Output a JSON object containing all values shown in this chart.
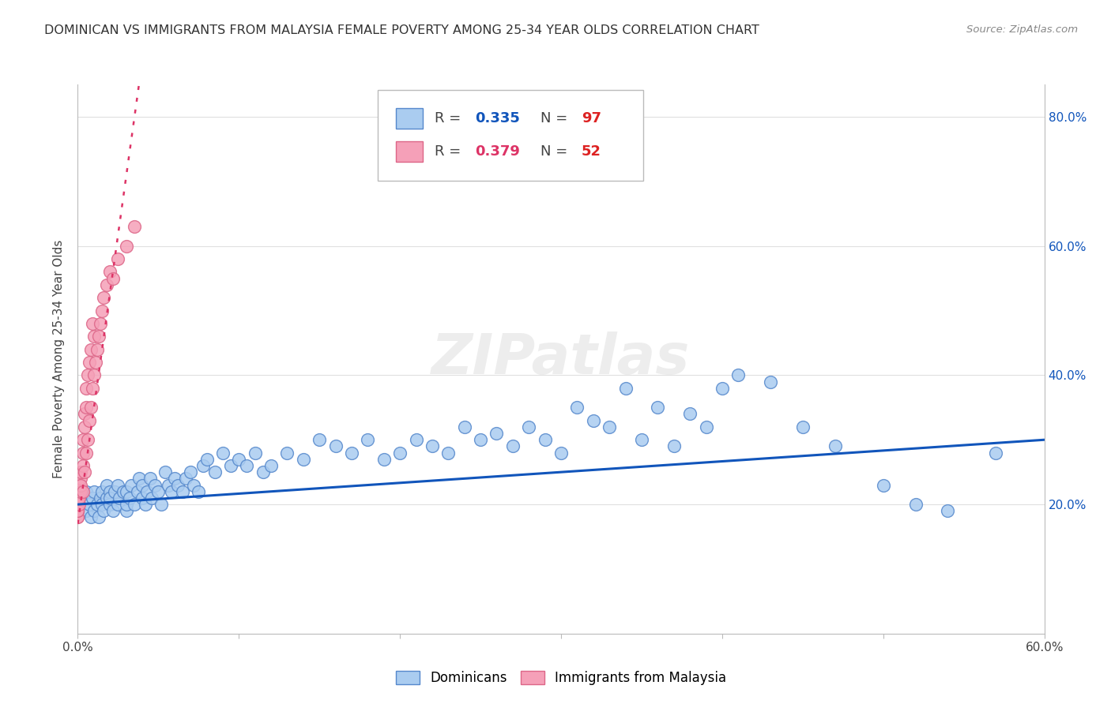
{
  "title": "DOMINICAN VS IMMIGRANTS FROM MALAYSIA FEMALE POVERTY AMONG 25-34 YEAR OLDS CORRELATION CHART",
  "source": "Source: ZipAtlas.com",
  "ylabel": "Female Poverty Among 25-34 Year Olds",
  "xlim": [
    0.0,
    0.6
  ],
  "ylim": [
    0.0,
    0.85
  ],
  "xtick_values": [
    0.0,
    0.1,
    0.2,
    0.3,
    0.4,
    0.5,
    0.6
  ],
  "xtick_labels": [
    "0.0%",
    "",
    "",
    "",
    "",
    "",
    "60.0%"
  ],
  "ytick_values_left": [
    0.0,
    0.2,
    0.4,
    0.6,
    0.8
  ],
  "ytick_labels_left": [
    "",
    "",
    "",
    "",
    ""
  ],
  "ytick_values_right": [
    0.2,
    0.4,
    0.6,
    0.8
  ],
  "ytick_labels_right": [
    "20.0%",
    "40.0%",
    "60.0%",
    "80.0%"
  ],
  "dominican_color": "#aaccf0",
  "dominican_edge_color": "#5588cc",
  "malaysia_color": "#f5a0b8",
  "malaysia_edge_color": "#dd6688",
  "trendline_dominican_color": "#1155bb",
  "trendline_malaysia_color": "#dd3366",
  "R_dominican": 0.335,
  "N_dominican": 97,
  "R_malaysia": 0.379,
  "N_malaysia": 52,
  "background_color": "#ffffff",
  "grid_color": "#e0e0e0",
  "watermark": "ZIPatlas",
  "dominican_x": [
    0.005,
    0.005,
    0.007,
    0.008,
    0.009,
    0.01,
    0.01,
    0.012,
    0.013,
    0.014,
    0.015,
    0.015,
    0.016,
    0.018,
    0.018,
    0.02,
    0.02,
    0.02,
    0.022,
    0.023,
    0.025,
    0.025,
    0.026,
    0.028,
    0.03,
    0.03,
    0.03,
    0.032,
    0.033,
    0.035,
    0.037,
    0.038,
    0.04,
    0.04,
    0.042,
    0.043,
    0.045,
    0.046,
    0.048,
    0.05,
    0.052,
    0.054,
    0.056,
    0.058,
    0.06,
    0.062,
    0.065,
    0.067,
    0.07,
    0.072,
    0.075,
    0.078,
    0.08,
    0.085,
    0.09,
    0.095,
    0.1,
    0.105,
    0.11,
    0.115,
    0.12,
    0.13,
    0.14,
    0.15,
    0.16,
    0.17,
    0.18,
    0.19,
    0.2,
    0.21,
    0.22,
    0.23,
    0.24,
    0.25,
    0.26,
    0.27,
    0.28,
    0.29,
    0.3,
    0.31,
    0.32,
    0.33,
    0.34,
    0.35,
    0.36,
    0.37,
    0.38,
    0.39,
    0.4,
    0.41,
    0.43,
    0.45,
    0.47,
    0.5,
    0.52,
    0.54,
    0.57
  ],
  "dominican_y": [
    0.22,
    0.19,
    0.2,
    0.18,
    0.21,
    0.19,
    0.22,
    0.2,
    0.18,
    0.21,
    0.2,
    0.22,
    0.19,
    0.21,
    0.23,
    0.2,
    0.22,
    0.21,
    0.19,
    0.22,
    0.2,
    0.23,
    0.21,
    0.22,
    0.19,
    0.2,
    0.22,
    0.21,
    0.23,
    0.2,
    0.22,
    0.24,
    0.21,
    0.23,
    0.2,
    0.22,
    0.24,
    0.21,
    0.23,
    0.22,
    0.2,
    0.25,
    0.23,
    0.22,
    0.24,
    0.23,
    0.22,
    0.24,
    0.25,
    0.23,
    0.22,
    0.26,
    0.27,
    0.25,
    0.28,
    0.26,
    0.27,
    0.26,
    0.28,
    0.25,
    0.26,
    0.28,
    0.27,
    0.3,
    0.29,
    0.28,
    0.3,
    0.27,
    0.28,
    0.3,
    0.29,
    0.28,
    0.32,
    0.3,
    0.31,
    0.29,
    0.32,
    0.3,
    0.28,
    0.35,
    0.33,
    0.32,
    0.38,
    0.3,
    0.35,
    0.29,
    0.34,
    0.32,
    0.38,
    0.4,
    0.39,
    0.32,
    0.29,
    0.23,
    0.2,
    0.19,
    0.28
  ],
  "malaysia_x": [
    0.0,
    0.0,
    0.0,
    0.0,
    0.0,
    0.0,
    0.0,
    0.0,
    0.0,
    0.0,
    0.0,
    0.0,
    0.001,
    0.001,
    0.001,
    0.001,
    0.002,
    0.002,
    0.002,
    0.002,
    0.003,
    0.003,
    0.003,
    0.003,
    0.004,
    0.004,
    0.004,
    0.005,
    0.005,
    0.005,
    0.006,
    0.006,
    0.007,
    0.007,
    0.008,
    0.008,
    0.009,
    0.009,
    0.01,
    0.01,
    0.011,
    0.012,
    0.013,
    0.014,
    0.015,
    0.016,
    0.018,
    0.02,
    0.022,
    0.025,
    0.03,
    0.035
  ],
  "malaysia_y": [
    0.18,
    0.19,
    0.2,
    0.19,
    0.18,
    0.19,
    0.2,
    0.21,
    0.22,
    0.2,
    0.19,
    0.21,
    0.2,
    0.22,
    0.21,
    0.23,
    0.22,
    0.24,
    0.23,
    0.25,
    0.22,
    0.26,
    0.28,
    0.3,
    0.25,
    0.32,
    0.34,
    0.28,
    0.35,
    0.38,
    0.3,
    0.4,
    0.33,
    0.42,
    0.35,
    0.44,
    0.38,
    0.48,
    0.4,
    0.46,
    0.42,
    0.44,
    0.46,
    0.48,
    0.5,
    0.52,
    0.54,
    0.56,
    0.55,
    0.58,
    0.6,
    0.63
  ]
}
